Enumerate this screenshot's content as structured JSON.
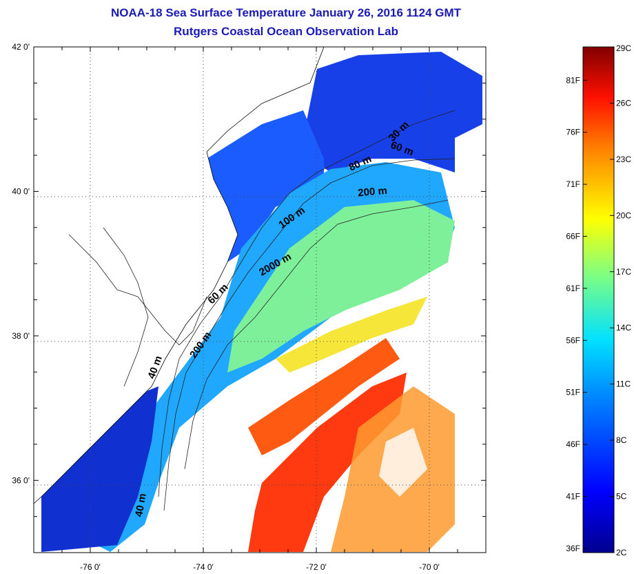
{
  "header": {
    "title": "NOAA-18 Sea Surface Temperature January 26, 2016 1124 GMT",
    "subtitle": "Rutgers Coastal Ocean Observation Lab"
  },
  "map": {
    "lat_labels": [
      {
        "lat": 42,
        "text": "42 0'"
      },
      {
        "lat": 40,
        "text": "40 0'"
      },
      {
        "lat": 38,
        "text": "38 0'"
      },
      {
        "lat": 36,
        "text": "36 0'"
      }
    ],
    "lon_labels": [
      {
        "lon": -76,
        "text": "-76 0'"
      },
      {
        "lon": -74,
        "text": "-74 0'"
      },
      {
        "lon": -72,
        "text": "-72 0'"
      },
      {
        "lon": -70,
        "text": "-70 0'"
      }
    ],
    "lat_range": [
      35.0,
      42.0
    ],
    "lon_range": [
      -77.0,
      -69.0
    ],
    "grid": "dotted",
    "contour_labels": [
      {
        "text": "30 m",
        "lon": -70.5,
        "lat": 40.8,
        "angle": -45
      },
      {
        "text": "60 m",
        "lon": -70.5,
        "lat": 40.55,
        "angle": 20
      },
      {
        "text": "80 m",
        "lon": -71.2,
        "lat": 40.35,
        "angle": -25
      },
      {
        "text": "200 m",
        "lon": -71.0,
        "lat": 39.95,
        "angle": -5
      },
      {
        "text": "100 m",
        "lon": -72.4,
        "lat": 39.6,
        "angle": -35
      },
      {
        "text": "2000 m",
        "lon": -72.7,
        "lat": 38.95,
        "angle": -30
      },
      {
        "text": "60 m",
        "lon": -73.7,
        "lat": 38.55,
        "angle": -45
      },
      {
        "text": "200 m",
        "lon": -74.0,
        "lat": 37.85,
        "angle": -55
      },
      {
        "text": "40 m",
        "lon": -74.8,
        "lat": 37.55,
        "angle": -70
      },
      {
        "text": "40 m",
        "lon": -75.05,
        "lat": 35.65,
        "angle": -80
      }
    ]
  },
  "colorbar": {
    "celsius": [
      "29C",
      "26C",
      "23C",
      "20C",
      "17C",
      "14C",
      "11C",
      "8C",
      "5C",
      "2C"
    ],
    "fahrenheit": [
      "81F",
      "76F",
      "71F",
      "66F",
      "61F",
      "56F",
      "51F",
      "46F",
      "41F",
      "36F"
    ],
    "c_range": [
      2,
      29
    ],
    "colors": [
      "#00008f",
      "#0000ff",
      "#0080ff",
      "#00ffff",
      "#80ff80",
      "#ffff00",
      "#ff8000",
      "#ff0000",
      "#800000"
    ]
  }
}
